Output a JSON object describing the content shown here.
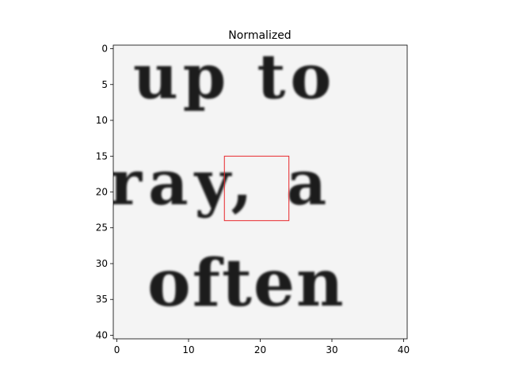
{
  "figure": {
    "title": "Normalized",
    "text_lines": [
      "up to",
      "ray, a",
      "often"
    ],
    "x_ticks": [
      0,
      10,
      20,
      30,
      40
    ],
    "y_ticks": [
      0,
      5,
      10,
      15,
      20,
      25,
      30,
      35,
      40
    ],
    "image_extent": {
      "x_min": -0.5,
      "x_max": 40.5,
      "y_min": -0.5,
      "y_max": 40.5
    },
    "highlight_box": {
      "x0": 15,
      "y0": 15,
      "x1": 24,
      "y1": 24,
      "color": "#e8262a"
    },
    "background_color": "#f4f4f4",
    "axis_color": "#000000"
  }
}
